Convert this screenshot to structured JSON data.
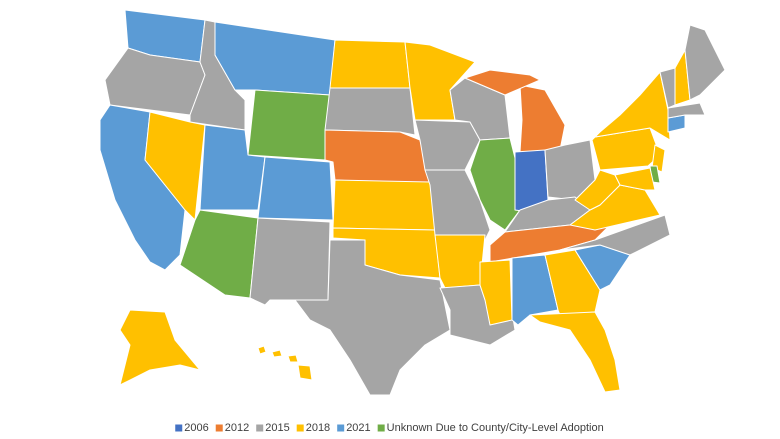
{
  "legend": {
    "items": [
      {
        "label": "2006",
        "color": "#4472c4"
      },
      {
        "label": "2012",
        "color": "#ed7d31"
      },
      {
        "label": "2015",
        "color": "#a5a5a5"
      },
      {
        "label": "2018",
        "color": "#ffc000"
      },
      {
        "label": "2021",
        "color": "#5b9bd5"
      },
      {
        "label": "Unknown Due to County/City-Level Adoption",
        "color": "#70ad47"
      }
    ]
  }
}
